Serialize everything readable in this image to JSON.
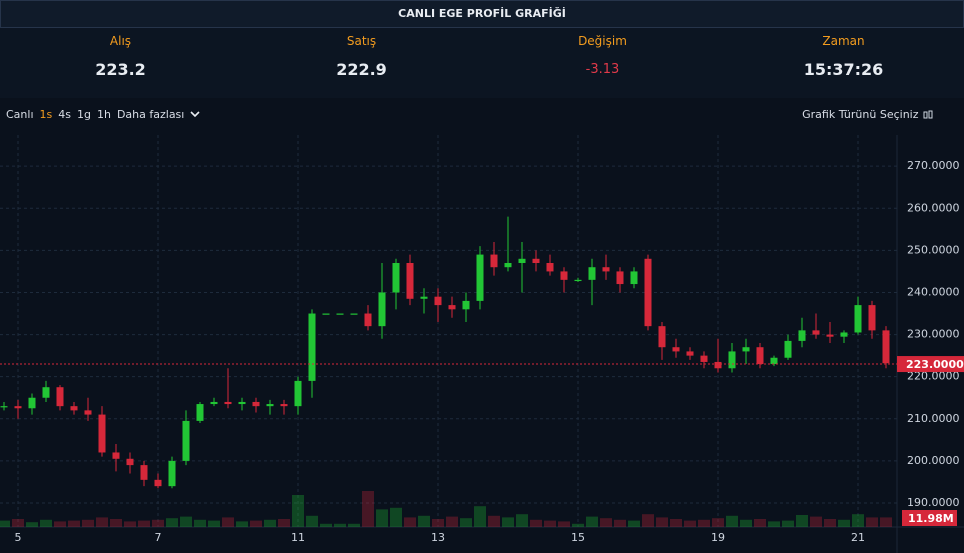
{
  "header": {
    "title": "CANLI EGE PROFİL GRAFİĞİ",
    "stats": [
      {
        "label": "Alış",
        "value": "223.2"
      },
      {
        "label": "Satış",
        "value": "222.9"
      },
      {
        "label": "Değişim",
        "value": "-3.13"
      },
      {
        "label": "Zaman",
        "value": "15:37:26"
      }
    ]
  },
  "toolbar": {
    "items": [
      "Canlı",
      "1s",
      "4s",
      "1g",
      "1h",
      "Daha fazlası"
    ],
    "active": "1s",
    "right": "Grafik Türünü Seçiniz"
  },
  "chart_data": {
    "type": "candlestick",
    "up_color": "#22c635",
    "down_color": "#d6283a",
    "grid": true,
    "categories": [
      null,
      "5",
      null,
      null,
      null,
      null,
      null,
      null,
      null,
      null,
      null,
      "7",
      null,
      null,
      null,
      null,
      null,
      null,
      null,
      null,
      null,
      "11",
      null,
      null,
      null,
      null,
      null,
      null,
      null,
      null,
      null,
      "13",
      null,
      null,
      null,
      null,
      null,
      null,
      null,
      null,
      null,
      "15",
      null,
      null,
      null,
      null,
      null,
      null,
      null,
      null,
      null,
      "19",
      null,
      null,
      null,
      null,
      null,
      null,
      null,
      null,
      null,
      "21",
      null,
      null
    ],
    "candles": [
      [
        213,
        214,
        212,
        213
      ],
      [
        213,
        214.5,
        210,
        212.5
      ],
      [
        212.5,
        216,
        211,
        215
      ],
      [
        215,
        219,
        214,
        217.5
      ],
      [
        217.5,
        218,
        212,
        213
      ],
      [
        213,
        214,
        211,
        212
      ],
      [
        212,
        215,
        209.5,
        211
      ],
      [
        211,
        213,
        201,
        202
      ],
      [
        202,
        204,
        197.5,
        200.5
      ],
      [
        200.5,
        202,
        197,
        199
      ],
      [
        199,
        200,
        194,
        195.5
      ],
      [
        195.5,
        197,
        193.5,
        194
      ],
      [
        194,
        201,
        193.5,
        200
      ],
      [
        200,
        212,
        199,
        209.5
      ],
      [
        209.5,
        214,
        209,
        213.5
      ],
      [
        213.5,
        215,
        213,
        214
      ],
      [
        214,
        222,
        212.5,
        213.5
      ],
      [
        213.5,
        215,
        212,
        214
      ],
      [
        214,
        215,
        211.5,
        213
      ],
      [
        213,
        214.5,
        211,
        213.5
      ],
      [
        213.5,
        214.5,
        211,
        213
      ],
      [
        213,
        220,
        211,
        219
      ],
      [
        219,
        236,
        215,
        235
      ],
      [
        235,
        235,
        235,
        235
      ],
      [
        235,
        235,
        235,
        235
      ],
      [
        235,
        235,
        235,
        235
      ],
      [
        235,
        237,
        231,
        232
      ],
      [
        232,
        247,
        229,
        240
      ],
      [
        240,
        248,
        236,
        247
      ],
      [
        247,
        249,
        237,
        238.5
      ],
      [
        238.5,
        241,
        235,
        239
      ],
      [
        239,
        241,
        233,
        237
      ],
      [
        237,
        239,
        234,
        236
      ],
      [
        236,
        240,
        233,
        238
      ],
      [
        238,
        251,
        236,
        249
      ],
      [
        249,
        252,
        244,
        246
      ],
      [
        246,
        258,
        245,
        247
      ],
      [
        247,
        252,
        240,
        248
      ],
      [
        248,
        250,
        245,
        247
      ],
      [
        247,
        249,
        244,
        245
      ],
      [
        245,
        246,
        240,
        243
      ],
      [
        243,
        243.5,
        242.5,
        243
      ],
      [
        243,
        248,
        237,
        246
      ],
      [
        246,
        249,
        243,
        245
      ],
      [
        245,
        246,
        240,
        242
      ],
      [
        242,
        246,
        241,
        245
      ],
      [
        248,
        249,
        231,
        232
      ],
      [
        232,
        233,
        224,
        227
      ],
      [
        227,
        229,
        224.5,
        226
      ],
      [
        226,
        227,
        224,
        225
      ],
      [
        225,
        226,
        222,
        223.5
      ],
      [
        223.5,
        229,
        221,
        222
      ],
      [
        222,
        228,
        221,
        226
      ],
      [
        226,
        229,
        223,
        227
      ],
      [
        227,
        228,
        222,
        223
      ],
      [
        223,
        225,
        222.5,
        224.5
      ],
      [
        224.5,
        230,
        224,
        228.5
      ],
      [
        228.5,
        234,
        227,
        231
      ],
      [
        231,
        235,
        229,
        230
      ],
      [
        230,
        233,
        228,
        229.5
      ],
      [
        229.5,
        231,
        228,
        230.5
      ],
      [
        230.5,
        239,
        230,
        237
      ],
      [
        237,
        238,
        229,
        231
      ],
      [
        231,
        232,
        222,
        223.2
      ]
    ],
    "volumes": [
      8,
      10,
      6,
      9,
      7,
      8,
      9,
      12,
      10,
      7,
      8,
      9,
      11,
      13,
      9,
      8,
      12,
      7,
      8,
      9,
      10,
      40,
      14,
      4,
      4,
      4,
      45,
      22,
      24,
      12,
      14,
      10,
      13,
      11,
      26,
      14,
      12,
      16,
      9,
      8,
      7,
      4,
      13,
      11,
      9,
      8,
      16,
      12,
      10,
      8,
      9,
      11,
      14,
      9,
      10,
      7,
      8,
      15,
      13,
      10,
      9,
      16,
      12,
      11.98
    ],
    "volume_label": "11.98M",
    "last_price": {
      "value": 223,
      "label": "223.0000"
    },
    "ylim": [
      184.3,
      277.4
    ],
    "yticks": [
      {
        "value": 190,
        "label": "190.0000"
      },
      {
        "value": 200,
        "label": "200.0000"
      },
      {
        "value": 210,
        "label": "210.0000"
      },
      {
        "value": 220,
        "label": "220.0000"
      },
      {
        "value": 230,
        "label": "230.0000"
      },
      {
        "value": 240,
        "label": "240.0000"
      },
      {
        "value": 250,
        "label": "250.0000"
      },
      {
        "value": 260,
        "label": "260.0000"
      },
      {
        "value": 270,
        "label": "270.0000"
      }
    ]
  }
}
